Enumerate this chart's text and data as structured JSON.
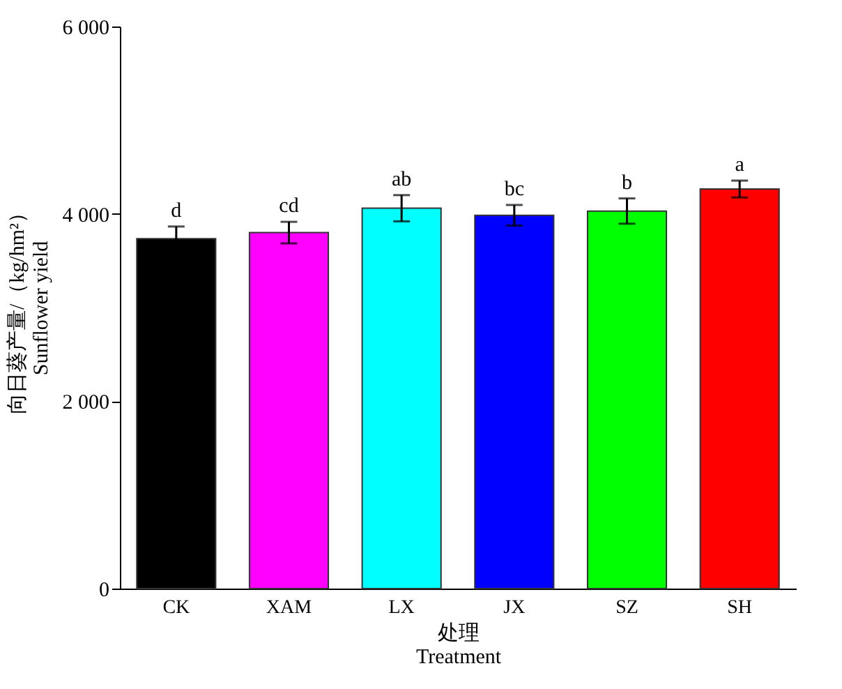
{
  "chart_data": {
    "type": "bar",
    "xlabel": "处理\nTreatment",
    "ylabel": "向日葵产量/（kg/hm²）\nSunflower yield",
    "categories": [
      "CK",
      "XAM",
      "LX",
      "JX",
      "SZ",
      "SH"
    ],
    "values": [
      3735,
      3800,
      4060,
      3985,
      4030,
      4265
    ],
    "colors": [
      "#000000",
      "#ff00ff",
      "#00ffff",
      "#0000ff",
      "#00ff00",
      "#ff0000"
    ],
    "errors": [
      130,
      115,
      140,
      110,
      135,
      90
    ],
    "ylim": [
      0,
      6000
    ],
    "yticks": [
      {
        "value": 0,
        "label": "0"
      },
      {
        "value": 2000,
        "label": "2 000"
      },
      {
        "value": 4000,
        "label": "4 000"
      },
      {
        "value": 6000,
        "label": "6 000"
      }
    ],
    "grid": false,
    "annotations": [
      {
        "text": "d",
        "x": "CK",
        "y": 3865
      },
      {
        "text": "cd",
        "x": "XAM",
        "y": 3915
      },
      {
        "text": "ab",
        "x": "LX",
        "y": 4200
      },
      {
        "text": "bc",
        "x": "JX",
        "y": 4095
      },
      {
        "text": "b",
        "x": "SZ",
        "y": 4165
      },
      {
        "text": "a",
        "x": "SH",
        "y": 4355
      }
    ]
  }
}
